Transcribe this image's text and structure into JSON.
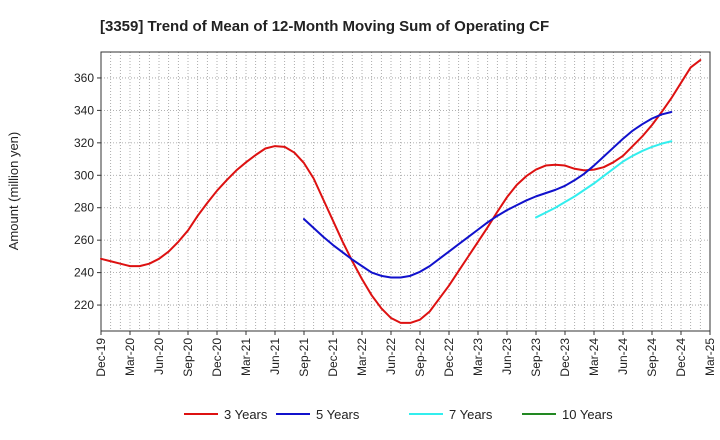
{
  "chart_data": {
    "type": "line",
    "title": "[3359]  Trend of Mean of 12-Month Moving Sum of Operating CF",
    "xlabel": "",
    "ylabel": "Amount (million yen)",
    "ylim": [
      204,
      376
    ],
    "yticks": [
      220,
      240,
      260,
      280,
      300,
      320,
      340,
      360
    ],
    "xticks": [
      "Dec-19",
      "Mar-20",
      "Jun-20",
      "Sep-20",
      "Dec-20",
      "Mar-21",
      "Jun-21",
      "Sep-21",
      "Dec-21",
      "Mar-22",
      "Jun-22",
      "Sep-22",
      "Dec-22",
      "Mar-23",
      "Jun-23",
      "Sep-23",
      "Dec-23",
      "Mar-24",
      "Jun-24",
      "Sep-24",
      "Dec-24",
      "Mar-25"
    ],
    "grid": true,
    "legend_position": "bottom",
    "series": [
      {
        "name": "3 Years",
        "color": "#dd1111",
        "start_index": 0,
        "values": [
          248.5,
          247,
          245.5,
          244,
          244,
          245.5,
          248.5,
          253,
          259,
          266,
          275,
          283,
          290.5,
          297,
          303,
          308,
          312.5,
          316.5,
          318,
          317.5,
          314,
          307.5,
          298,
          285,
          272,
          259,
          247,
          236,
          226,
          218,
          212,
          209,
          209,
          211,
          216,
          224,
          232,
          241,
          250,
          259,
          268,
          277.5,
          286.5,
          294,
          299.5,
          303.5,
          306,
          306.5,
          306,
          304,
          303,
          303.5,
          305,
          308,
          312,
          318,
          324,
          331,
          339,
          347.5,
          357,
          366.5,
          371
        ]
      },
      {
        "name": "5 Years",
        "color": "#1111cc",
        "start_index": 21,
        "values": [
          273,
          267.5,
          262,
          257,
          252.5,
          248,
          244,
          240,
          238,
          237,
          237,
          238,
          240.5,
          244,
          248.5,
          253,
          257.5,
          262,
          266.5,
          271,
          275,
          278.5,
          281.5,
          284.5,
          287,
          289,
          291,
          293.5,
          297,
          301,
          306,
          311.5,
          317,
          322.5,
          327.5,
          331.5,
          335,
          337.5,
          339
        ]
      },
      {
        "name": "7 Years",
        "color": "#33eeee",
        "start_index": 45,
        "values": [
          274,
          277,
          280,
          283.5,
          287,
          291,
          295,
          299.5,
          304,
          308.5,
          312,
          315,
          317.5,
          319.5,
          321
        ]
      },
      {
        "name": "10 Years",
        "color": "#228822",
        "start_index": 0,
        "values": []
      }
    ]
  }
}
